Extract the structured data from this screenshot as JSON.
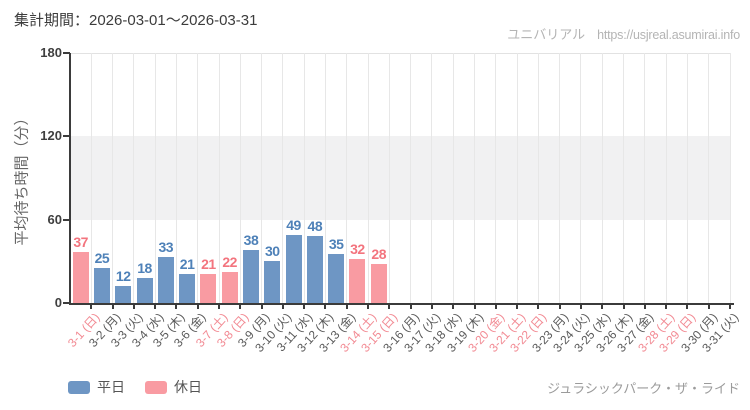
{
  "header": {
    "period_label": "集計期間：2026-03-01～2026-03-31",
    "site_name": "ユニバリアル",
    "site_url": "https://usjreal.asumirai.info"
  },
  "footer": {
    "attraction_name": "ジュラシックパーク・ザ・ライド"
  },
  "legend": [
    {
      "label": "平日",
      "color": "#6e96c4"
    },
    {
      "label": "休日",
      "color": "#f99ba2"
    }
  ],
  "colors": {
    "weekday_bar": "#6e96c4",
    "weekday_value_label": "#4e81b8",
    "holiday_bar": "#f99ba2",
    "holiday_value_label": "#f3747e",
    "weekday_tick_label": "#595959",
    "holiday_tick_label": "#f28a93",
    "band_fill": "#f1f1f2",
    "gridline": "#e7e7e7",
    "axis": "#3b3b3b"
  },
  "chart_data": {
    "type": "bar",
    "title": "",
    "xlabel": "",
    "ylabel": "平均待ち時間（分）",
    "ylim": [
      0,
      180
    ],
    "yticks": [
      0,
      60,
      120,
      180
    ],
    "grid": true,
    "legend_position": "bottom-left",
    "shaded_band": [
      60,
      120
    ],
    "series": [
      {
        "name": "平日",
        "color": "#6e96c4"
      },
      {
        "name": "休日",
        "color": "#f99ba2"
      }
    ],
    "points": [
      {
        "label": "3-1 (日)",
        "value": 37,
        "day_type": "holiday"
      },
      {
        "label": "3-2 (月)",
        "value": 25,
        "day_type": "weekday"
      },
      {
        "label": "3-3 (火)",
        "value": 12,
        "day_type": "weekday"
      },
      {
        "label": "3-4 (水)",
        "value": 18,
        "day_type": "weekday"
      },
      {
        "label": "3-5 (木)",
        "value": 33,
        "day_type": "weekday"
      },
      {
        "label": "3-6 (金)",
        "value": 21,
        "day_type": "weekday"
      },
      {
        "label": "3-7 (土)",
        "value": 21,
        "day_type": "holiday"
      },
      {
        "label": "3-8 (日)",
        "value": 22,
        "day_type": "holiday"
      },
      {
        "label": "3-9 (月)",
        "value": 38,
        "day_type": "weekday"
      },
      {
        "label": "3-10 (火)",
        "value": 30,
        "day_type": "weekday"
      },
      {
        "label": "3-11 (水)",
        "value": 49,
        "day_type": "weekday"
      },
      {
        "label": "3-12 (木)",
        "value": 48,
        "day_type": "weekday"
      },
      {
        "label": "3-13 (金)",
        "value": 35,
        "day_type": "weekday"
      },
      {
        "label": "3-14 (土)",
        "value": 32,
        "day_type": "holiday"
      },
      {
        "label": "3-15 (日)",
        "value": 28,
        "day_type": "holiday"
      },
      {
        "label": "3-16 (月)",
        "value": null,
        "day_type": "weekday"
      },
      {
        "label": "3-17 (火)",
        "value": null,
        "day_type": "weekday"
      },
      {
        "label": "3-18 (水)",
        "value": null,
        "day_type": "weekday"
      },
      {
        "label": "3-19 (木)",
        "value": null,
        "day_type": "weekday"
      },
      {
        "label": "3-20 (金)",
        "value": null,
        "day_type": "holiday"
      },
      {
        "label": "3-21 (土)",
        "value": null,
        "day_type": "holiday"
      },
      {
        "label": "3-22 (日)",
        "value": null,
        "day_type": "holiday"
      },
      {
        "label": "3-23 (月)",
        "value": null,
        "day_type": "weekday"
      },
      {
        "label": "3-24 (火)",
        "value": null,
        "day_type": "weekday"
      },
      {
        "label": "3-25 (水)",
        "value": null,
        "day_type": "weekday"
      },
      {
        "label": "3-26 (木)",
        "value": null,
        "day_type": "weekday"
      },
      {
        "label": "3-27 (金)",
        "value": null,
        "day_type": "weekday"
      },
      {
        "label": "3-28 (土)",
        "value": null,
        "day_type": "holiday"
      },
      {
        "label": "3-29 (日)",
        "value": null,
        "day_type": "holiday"
      },
      {
        "label": "3-30 (月)",
        "value": null,
        "day_type": "weekday"
      },
      {
        "label": "3-31 (火)",
        "value": null,
        "day_type": "weekday"
      }
    ]
  }
}
